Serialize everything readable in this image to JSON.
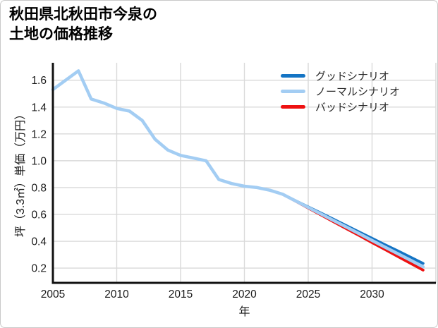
{
  "card": {
    "title_line1": "秋田県北秋田市今泉の",
    "title_line2": "土地の価格推移"
  },
  "chart_data": {
    "type": "line",
    "title": "秋田県北秋田市今泉の土地の価格推移",
    "xlabel": "年",
    "ylabel": "坪（3.3㎡）単価（万円）",
    "xlim": [
      2005,
      2035
    ],
    "ylim": [
      0.09,
      1.73
    ],
    "xticks": [
      2005,
      2010,
      2015,
      2020,
      2025,
      2030
    ],
    "ytick_labels": [
      "0.2",
      "0.4",
      "0.6",
      "0.8",
      "1.0",
      "1.2",
      "1.4",
      "1.6"
    ],
    "grid": true,
    "legend_position": "upper-right",
    "colors": {
      "good": "#1474c4",
      "normal": "#a3cdf3",
      "bad": "#ee1111",
      "gridline": "#d9d9d9",
      "axis": "#111111",
      "tick_text": "#1a1a1a"
    },
    "series": [
      {
        "id": "good",
        "name": "グッドシナリオ",
        "color": "#1474c4",
        "x": [
          2023,
          2024,
          2025,
          2026,
          2027,
          2028,
          2029,
          2030,
          2031,
          2032,
          2033,
          2034
        ],
        "y": [
          0.75,
          0.703,
          0.656,
          0.61,
          0.563,
          0.516,
          0.469,
          0.422,
          0.375,
          0.329,
          0.282,
          0.235
        ]
      },
      {
        "id": "normal",
        "name": "ノーマルシナリオ",
        "color": "#a3cdf3",
        "x": [
          2005,
          2006,
          2007,
          2008,
          2009,
          2010,
          2011,
          2012,
          2013,
          2014,
          2015,
          2016,
          2017,
          2018,
          2019,
          2020,
          2021,
          2022,
          2023,
          2024,
          2025,
          2026,
          2027,
          2028,
          2029,
          2030,
          2031,
          2032,
          2033,
          2034
        ],
        "y": [
          1.53,
          1.6,
          1.67,
          1.46,
          1.43,
          1.39,
          1.37,
          1.3,
          1.16,
          1.08,
          1.04,
          1.02,
          1.0,
          0.86,
          0.83,
          0.81,
          0.8,
          0.78,
          0.75,
          0.701,
          0.652,
          0.603,
          0.554,
          0.505,
          0.456,
          0.406,
          0.357,
          0.308,
          0.259,
          0.21
        ]
      },
      {
        "id": "bad",
        "name": "バッドシナリオ",
        "color": "#ee1111",
        "x": [
          2023,
          2024,
          2025,
          2026,
          2027,
          2028,
          2029,
          2030,
          2031,
          2032,
          2033,
          2034
        ],
        "y": [
          0.75,
          0.699,
          0.647,
          0.596,
          0.544,
          0.493,
          0.442,
          0.39,
          0.339,
          0.287,
          0.236,
          0.185
        ]
      }
    ]
  }
}
